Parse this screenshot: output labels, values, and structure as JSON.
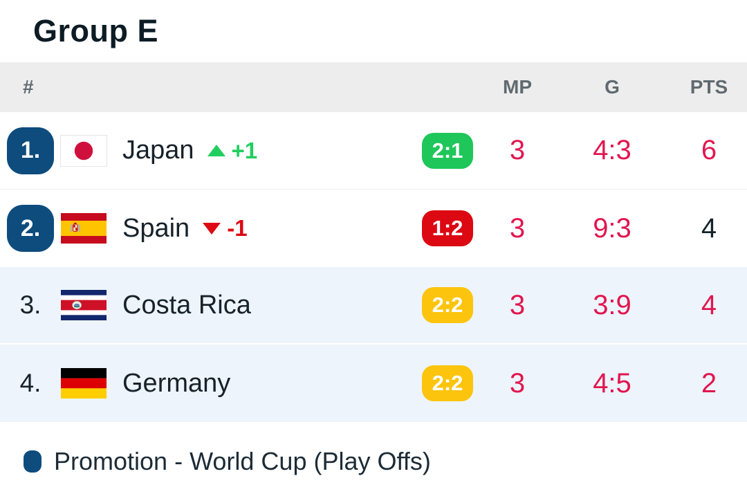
{
  "page": {
    "title": "Group E"
  },
  "colors": {
    "accent_pink": "#e1164f",
    "promotion_blue": "#0d4c7d",
    "win_green": "#1fc65a",
    "loss_red": "#dc0812",
    "draw_yellow": "#fcc40d",
    "movement_up_green": "#22ce5f",
    "movement_down_red": "#dd0a14",
    "highlight_row_bg": "#edf4fb",
    "header_bg": "#ededed",
    "dark_text": "#17222b"
  },
  "table": {
    "headers": {
      "rank": "#",
      "mp": "MP",
      "g": "G",
      "pts": "PTS"
    },
    "rows": [
      {
        "rank": "1.",
        "rank_badge": true,
        "flag": "japan",
        "team": "Japan",
        "movement": {
          "direction": "up",
          "label": "+1"
        },
        "form": {
          "score": "2:1",
          "result": "win"
        },
        "mp": "3",
        "g": "4:3",
        "pts": "6",
        "pts_color": "accent",
        "highlighted": false
      },
      {
        "rank": "2.",
        "rank_badge": true,
        "flag": "spain",
        "team": "Spain",
        "movement": {
          "direction": "down",
          "label": "-1"
        },
        "form": {
          "score": "1:2",
          "result": "loss"
        },
        "mp": "3",
        "g": "9:3",
        "pts": "4",
        "pts_color": "dark",
        "highlighted": false
      },
      {
        "rank": "3.",
        "rank_badge": false,
        "flag": "costa-rica",
        "team": "Costa Rica",
        "movement": null,
        "form": {
          "score": "2:2",
          "result": "draw"
        },
        "mp": "3",
        "g": "3:9",
        "pts": "4",
        "pts_color": "accent",
        "highlighted": true
      },
      {
        "rank": "4.",
        "rank_badge": false,
        "flag": "germany",
        "team": "Germany",
        "movement": null,
        "form": {
          "score": "2:2",
          "result": "draw"
        },
        "mp": "3",
        "g": "4:5",
        "pts": "2",
        "pts_color": "accent",
        "highlighted": true
      }
    ]
  },
  "legend": {
    "label": "Promotion - World Cup (Play Offs)",
    "color": "#0d4c7d"
  }
}
